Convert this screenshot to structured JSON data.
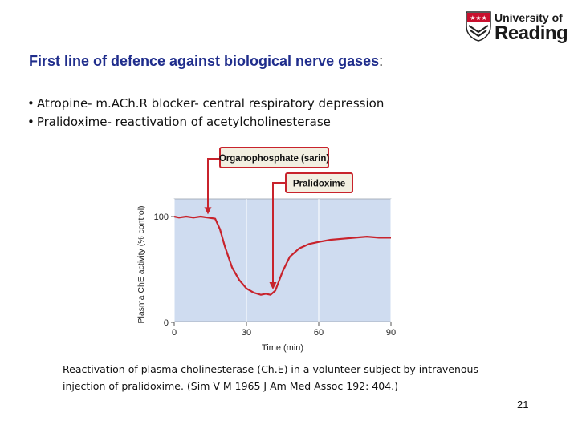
{
  "logo": {
    "line1": "University of",
    "line2": "Reading"
  },
  "slide": {
    "title": "First line of defence against biological nerve gases",
    "title_suffix": ":",
    "bullets": [
      "Atropine- m.ACh.R blocker- central respiratory depression",
      "Pralidoxime- reactivation of acetylcholinesterase"
    ],
    "caption_lines": [
      "Reactivation of plasma cholinesterase (Ch.E) in a volunteer subject by intravenous",
      "injection of pralidoxime. (Sim V M 1965 J Am Med Assoc 192: 404.)"
    ],
    "page_number": "21"
  },
  "colors": {
    "title": "#1f2d8c",
    "plot_bg": "#cfdcf0",
    "line": "#c8232c",
    "label_bg": "#f2efe1"
  },
  "chart_data": {
    "type": "line",
    "xlabel": "Time (min)",
    "ylabel": "Plasma ChE activity (% control)",
    "x_ticks": [
      "0",
      "30",
      "60",
      "90"
    ],
    "y_ticks": [
      "0",
      "100"
    ],
    "xlim": [
      0,
      90
    ],
    "ylim": [
      0,
      100
    ],
    "grid": true,
    "series": [
      {
        "x": [
          0,
          2,
          5,
          8,
          11,
          14,
          17,
          19,
          21,
          24,
          27,
          30,
          33,
          36,
          38,
          40,
          42,
          45,
          48,
          52,
          56,
          60,
          65,
          70,
          75,
          80,
          85,
          90
        ],
        "y": [
          100,
          99,
          100,
          99,
          100,
          99,
          98,
          88,
          72,
          52,
          40,
          32,
          28,
          26,
          27,
          26,
          30,
          48,
          62,
          70,
          74,
          76,
          78,
          79,
          80,
          81,
          80,
          80
        ]
      }
    ],
    "annotations": [
      {
        "text": "Organophosphate (sarin)",
        "x": 14
      },
      {
        "text": "Pralidoxime",
        "x": 41
      }
    ]
  }
}
